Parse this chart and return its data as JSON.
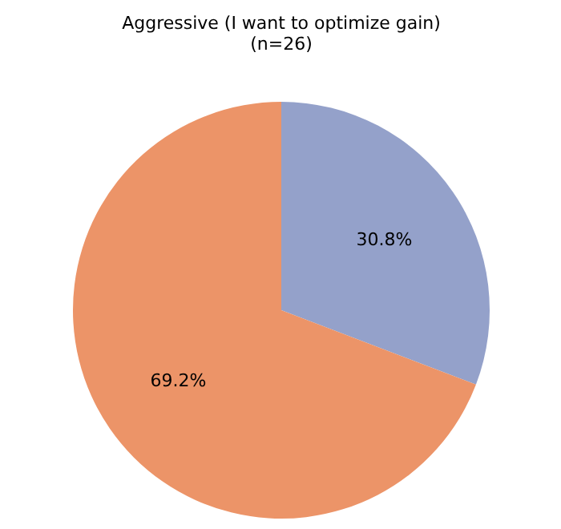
{
  "chart_data": {
    "type": "pie",
    "title": "Aggressive (I want to optimize gain)",
    "subtitle": "(n=26)",
    "categories": [
      null,
      null
    ],
    "values": [
      30.8,
      69.2
    ],
    "colors": [
      "#94a1ca",
      "#ec9468"
    ],
    "value_labels": [
      "30.8%",
      "69.2%"
    ]
  }
}
